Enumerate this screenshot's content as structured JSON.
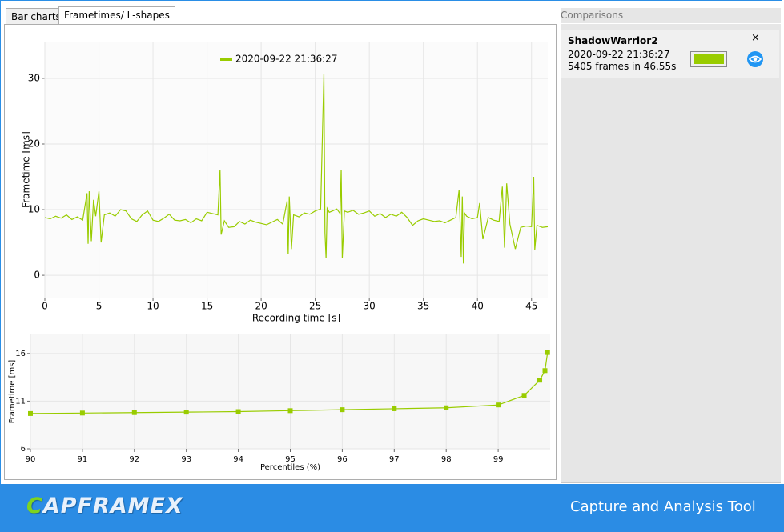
{
  "tabs": [
    "Bar charts",
    "Frametimes/ L-shapes"
  ],
  "comparisons": {
    "title": "Comparisons",
    "items": [
      {
        "game": "ShadowWarrior2",
        "date": "2020-09-22 21:36:27",
        "summary": "5405 frames in 46.55s",
        "close": "×",
        "color": "#99cc00"
      }
    ]
  },
  "footer": {
    "logo": "CAPFRAMEX",
    "tagline": "Capture and Analysis Tool"
  },
  "chart_data": [
    {
      "type": "line",
      "x_label": "Recording time [s]",
      "y_label": "Frametime [ms]",
      "legend": "top-center",
      "grid": true,
      "xlim": [
        0,
        46.5
      ],
      "ylim": [
        -3.4,
        35.6
      ],
      "xticks": [
        0,
        5,
        10,
        15,
        20,
        25,
        30,
        35,
        40,
        45
      ],
      "yticks": [
        0,
        10,
        20,
        30
      ],
      "x": [
        0,
        0.5,
        1,
        1.5,
        2,
        2.5,
        3,
        3.5,
        3.9,
        4.0,
        4.1,
        4.3,
        4.5,
        4.7,
        5.0,
        5.2,
        5.5,
        6,
        6.5,
        7,
        7.5,
        8,
        8.5,
        9,
        9.5,
        10,
        10.5,
        11,
        11.5,
        12,
        12.5,
        13,
        13.5,
        14,
        14.5,
        15,
        15.5,
        16,
        16.2,
        16.3,
        16.6,
        17,
        17.5,
        18,
        18.5,
        19,
        19.5,
        20,
        20.5,
        21,
        21.5,
        22,
        22.4,
        22.5,
        22.6,
        22.8,
        23,
        23.5,
        24,
        24.5,
        25,
        25.5,
        25.8,
        25.9,
        26.0,
        26.1,
        26.3,
        26.6,
        27,
        27.3,
        27.4,
        27.5,
        27.7,
        28,
        28.5,
        29,
        29.5,
        30,
        30.5,
        31,
        31.5,
        32,
        32.5,
        33,
        33.5,
        34,
        34.5,
        35,
        35.5,
        36,
        36.5,
        37,
        37.5,
        38,
        38.3,
        38.5,
        38.6,
        38.7,
        38.8,
        39,
        39.5,
        40,
        40.2,
        40.5,
        41,
        41.5,
        42,
        42.3,
        42.5,
        42.7,
        43,
        43.5,
        44,
        44.5,
        45,
        45.2,
        45.3,
        45.5,
        46,
        46.5
      ],
      "series": [
        {
          "name": "2020-09-22 21:36:27",
          "color": "#99cc00",
          "values": [
            8.8,
            8.6,
            9.0,
            8.7,
            9.2,
            8.5,
            8.9,
            8.4,
            12.5,
            4.8,
            12.8,
            5.2,
            11.5,
            9.0,
            12.8,
            5.0,
            9.2,
            9.5,
            9.0,
            10.0,
            9.8,
            8.6,
            8.2,
            9.2,
            9.8,
            8.4,
            8.2,
            8.7,
            9.3,
            8.4,
            8.3,
            8.5,
            8.0,
            8.6,
            8.3,
            9.6,
            9.4,
            9.2,
            16.1,
            6.2,
            8.3,
            7.3,
            7.4,
            8.2,
            7.8,
            8.4,
            8.1,
            7.9,
            7.7,
            8.1,
            8.5,
            7.8,
            11.3,
            3.2,
            12.0,
            4.0,
            9.2,
            8.9,
            9.5,
            9.3,
            9.8,
            10.1,
            30.6,
            6.5,
            2.6,
            10.2,
            9.6,
            9.8,
            10.1,
            9.4,
            16.1,
            2.6,
            9.8,
            9.6,
            9.9,
            9.3,
            9.5,
            9.8,
            9.0,
            9.4,
            8.8,
            9.3,
            9.0,
            9.6,
            8.8,
            7.6,
            8.3,
            8.6,
            8.4,
            8.2,
            8.3,
            8.0,
            8.4,
            8.8,
            13.0,
            2.8,
            12.0,
            1.8,
            9.5,
            9.0,
            8.6,
            8.8,
            11.0,
            5.5,
            8.8,
            8.4,
            8.2,
            13.5,
            4.2,
            14.0,
            7.8,
            4.0,
            7.3,
            7.5,
            7.4,
            15.0,
            3.9,
            7.6,
            7.3,
            7.4
          ]
        }
      ]
    },
    {
      "type": "line",
      "x_label": "Percentiles (%)",
      "y_label": "Frametime [ms]",
      "grid": true,
      "markers": true,
      "xlim": [
        90,
        100
      ],
      "ylim": [
        6,
        18
      ],
      "xticks": [
        90,
        91,
        92,
        93,
        94,
        95,
        96,
        97,
        98,
        99
      ],
      "yticks": [
        6,
        11,
        16
      ],
      "x": [
        90,
        91,
        92,
        93,
        94,
        95,
        96,
        97,
        98,
        99,
        99.5,
        99.8,
        99.9,
        99.95
      ],
      "color": "#99cc00",
      "values": [
        9.7,
        9.75,
        9.8,
        9.85,
        9.9,
        10.0,
        10.1,
        10.2,
        10.3,
        10.6,
        11.6,
        13.2,
        14.2,
        16.1
      ]
    }
  ]
}
